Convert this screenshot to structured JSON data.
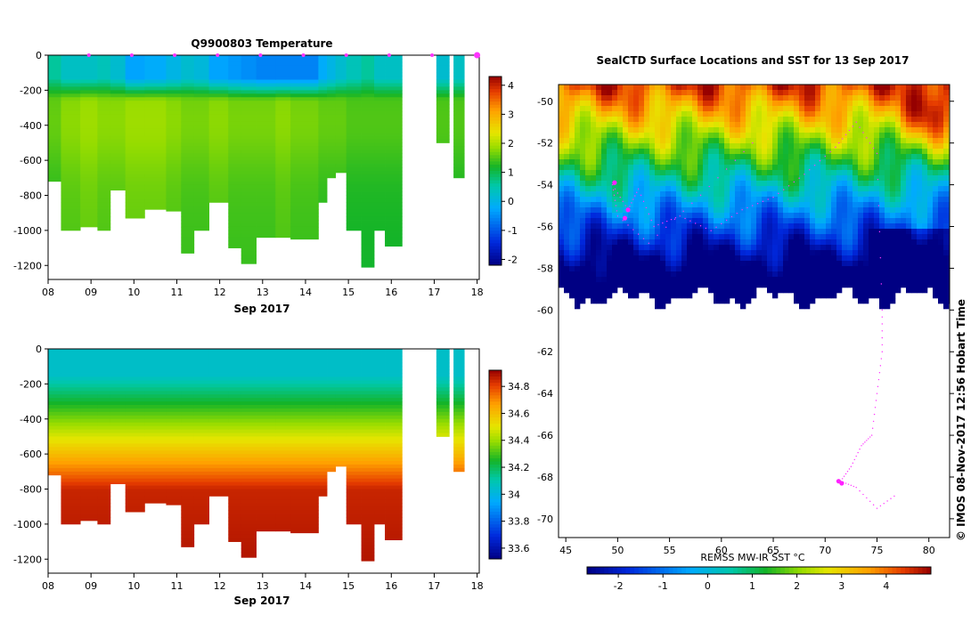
{
  "figure": {
    "watermark": "© IMOS 08-Nov-2017 12:56 Hobart Time"
  },
  "chart_data": [
    {
      "type": "heatmap",
      "title": "Q9900803  Temperature",
      "xlabel": "Sep 2017",
      "ylabel": "",
      "x_ticks": [
        "08",
        "09",
        "10",
        "11",
        "12",
        "13",
        "14",
        "15",
        "16",
        "17",
        "18"
      ],
      "xlim": [
        8.0,
        18.05
      ],
      "y_ticks": [
        "0",
        "-200",
        "-400",
        "-600",
        "-800",
        "-1000",
        "-1200"
      ],
      "ylim": [
        -1280,
        0
      ],
      "color_scale": {
        "min": -2.2,
        "max": 4.3,
        "ticks": [
          "-2",
          "-1",
          "0",
          "1",
          "2",
          "3",
          "4"
        ]
      },
      "profile_markers": [
        8.95,
        9.95,
        10.95,
        11.95,
        12.95,
        13.95,
        14.95,
        15.95,
        16.95,
        18.0
      ],
      "profiles": [
        {
          "x0": 8.0,
          "x1": 8.3,
          "depth": 720,
          "surface": 0.6,
          "deep": 1.4
        },
        {
          "x0": 8.3,
          "x1": 8.75,
          "depth": 1000,
          "surface": 0.3,
          "deep": 1.6
        },
        {
          "x0": 8.75,
          "x1": 9.15,
          "depth": 980,
          "surface": 0.3,
          "deep": 1.7
        },
        {
          "x0": 9.15,
          "x1": 9.45,
          "depth": 1000,
          "surface": 0.4,
          "deep": 1.6
        },
        {
          "x0": 9.45,
          "x1": 9.8,
          "depth": 770,
          "surface": 0.2,
          "deep": 1.6
        },
        {
          "x0": 9.8,
          "x1": 10.25,
          "depth": 930,
          "surface": -0.3,
          "deep": 1.7
        },
        {
          "x0": 10.25,
          "x1": 10.75,
          "depth": 880,
          "surface": -0.2,
          "deep": 1.7
        },
        {
          "x0": 10.75,
          "x1": 11.1,
          "depth": 890,
          "surface": 0.0,
          "deep": 1.6
        },
        {
          "x0": 11.1,
          "x1": 11.4,
          "depth": 1130,
          "surface": 0.2,
          "deep": 1.5
        },
        {
          "x0": 11.4,
          "x1": 11.75,
          "depth": 1000,
          "surface": 0.1,
          "deep": 1.5
        },
        {
          "x0": 11.75,
          "x1": 12.2,
          "depth": 840,
          "surface": -0.3,
          "deep": 1.6
        },
        {
          "x0": 12.2,
          "x1": 12.5,
          "depth": 1100,
          "surface": -0.4,
          "deep": 1.5
        },
        {
          "x0": 12.5,
          "x1": 12.85,
          "depth": 1190,
          "surface": -0.5,
          "deep": 1.5
        },
        {
          "x0": 12.85,
          "x1": 13.3,
          "depth": 1040,
          "surface": -0.6,
          "deep": 1.5
        },
        {
          "x0": 13.3,
          "x1": 13.65,
          "depth": 1040,
          "surface": -0.6,
          "deep": 1.6
        },
        {
          "x0": 13.65,
          "x1": 14.3,
          "depth": 1050,
          "surface": -0.6,
          "deep": 1.5
        },
        {
          "x0": 14.3,
          "x1": 14.5,
          "depth": 840,
          "surface": -0.2,
          "deep": 1.4
        },
        {
          "x0": 14.5,
          "x1": 14.7,
          "depth": 700,
          "surface": 0.0,
          "deep": 1.4
        },
        {
          "x0": 14.7,
          "x1": 14.95,
          "depth": 670,
          "surface": 0.2,
          "deep": 1.4
        },
        {
          "x0": 14.95,
          "x1": 15.3,
          "depth": 1000,
          "surface": 0.4,
          "deep": 1.3
        },
        {
          "x0": 15.3,
          "x1": 15.6,
          "depth": 1210,
          "surface": 0.6,
          "deep": 1.3
        },
        {
          "x0": 15.6,
          "x1": 15.85,
          "depth": 1000,
          "surface": 0.3,
          "deep": 1.3
        },
        {
          "x0": 15.85,
          "x1": 16.25,
          "depth": 1090,
          "surface": 0.3,
          "deep": 1.3
        },
        {
          "x0": 17.05,
          "x1": 17.35,
          "depth": 500,
          "surface": 0.2,
          "deep": 1.3
        },
        {
          "x0": 17.45,
          "x1": 17.7,
          "depth": 700,
          "surface": 0.3,
          "deep": 1.3
        }
      ]
    },
    {
      "type": "heatmap",
      "title": "",
      "xlabel": "Sep 2017",
      "ylabel": "",
      "x_ticks": [
        "08",
        "09",
        "10",
        "11",
        "12",
        "13",
        "14",
        "15",
        "16",
        "17",
        "18"
      ],
      "xlim": [
        8.0,
        18.05
      ],
      "y_ticks": [
        "0",
        "-200",
        "-400",
        "-600",
        "-800",
        "-1000",
        "-1200"
      ],
      "ylim": [
        -1280,
        0
      ],
      "color_scale": {
        "min": 33.52,
        "max": 34.92,
        "ticks": [
          "33.6",
          "33.8",
          "34",
          "34.2",
          "34.4",
          "34.6",
          "34.8"
        ]
      },
      "profiles_from_chart": 0
    },
    {
      "type": "heatmap",
      "title": "SealCTD Surface Locations and SST for 13 Sep 2017",
      "xlabel": "",
      "ylabel": "",
      "colorbar_label": "REMSS MW-IR SST °C",
      "lon_ticks": [
        "45",
        "50",
        "55",
        "60",
        "65",
        "70",
        "75",
        "80"
      ],
      "lon_range": [
        44.3,
        82.0
      ],
      "lat_ticks": [
        "-50",
        "-52",
        "-54",
        "-56",
        "-58",
        "-60",
        "-62",
        "-64",
        "-66",
        "-68",
        "-70"
      ],
      "lat_range": [
        -70.9,
        -49.2
      ],
      "color_scale": {
        "min": -2.7,
        "max": 5.0,
        "ticks": [
          "-2",
          "-1",
          "0",
          "1",
          "2",
          "3",
          "4"
        ]
      },
      "ice_edge_lat": -59.3,
      "seal_positions": [
        {
          "lon": 49.7,
          "lat": -53.9
        },
        {
          "lon": 51.0,
          "lat": -55.2
        },
        {
          "lon": 50.7,
          "lat": -55.6
        },
        {
          "lon": 71.3,
          "lat": -68.2
        },
        {
          "lon": 71.6,
          "lat": -68.3
        }
      ]
    }
  ]
}
